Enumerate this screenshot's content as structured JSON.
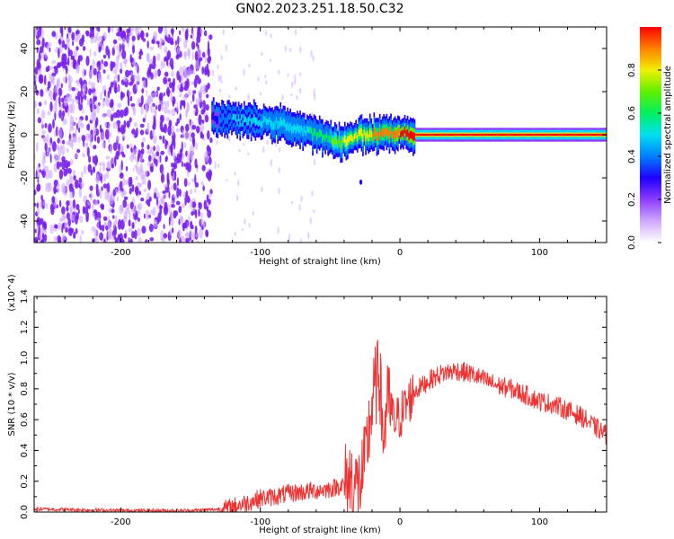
{
  "title": "GN02.2023.251.18.50.C32",
  "colors": {
    "snr_line": "#ee3333",
    "background_noise": "#7a20ee",
    "colormap": [
      "#ffffff",
      "#cfa8ff",
      "#8c3cff",
      "#1f00ff",
      "#0080ff",
      "#00e0f0",
      "#00f060",
      "#60f000",
      "#f0f000",
      "#ff8000",
      "#ff0000"
    ]
  },
  "chart_data": [
    {
      "type": "heatmap",
      "xlabel": "Height of straight line (km)",
      "ylabel": "Frequency (Hz)",
      "xlim": [
        -262,
        148
      ],
      "ylim": [
        -50,
        50
      ],
      "xticks": [
        -200,
        -100,
        0,
        100
      ],
      "yticks": [
        -40,
        -20,
        0,
        20,
        40
      ],
      "colorbar": {
        "label": "Normalized spectral amplitude",
        "range": [
          0,
          1
        ],
        "ticks": [
          "0.0",
          "0.2",
          "0.4",
          "0.6",
          "0.8"
        ]
      },
      "noise_region_x": [
        -262,
        -135
      ],
      "signal_ridge": {
        "x": [
          -135,
          -120,
          -100,
          -85,
          -75,
          -65,
          -55,
          -45,
          -38,
          -30,
          -20,
          -10,
          0,
          10,
          50,
          100,
          148
        ],
        "frequency": [
          8,
          7,
          6,
          5,
          3,
          1,
          -1,
          -3,
          -3,
          0,
          0,
          1,
          1,
          0,
          0,
          0,
          0
        ],
        "peak_amplitude": [
          0.3,
          0.45,
          0.5,
          0.5,
          0.5,
          0.55,
          0.6,
          0.7,
          0.8,
          0.8,
          0.85,
          0.9,
          0.95,
          1.0,
          1.0,
          1.0,
          1.0
        ]
      }
    },
    {
      "type": "line",
      "xlabel": "Height of straight line (km)",
      "ylabel": "SNR (10 * v/v)",
      "y_multiplier": "(x10^4)",
      "xlim": [
        -262,
        148
      ],
      "ylim": [
        0,
        1.4
      ],
      "xticks": [
        -200,
        -100,
        0,
        100
      ],
      "yticks": [
        "0.0",
        "0.2",
        "0.4",
        "0.6",
        "0.8",
        "1.0",
        "1.2",
        "1.4"
      ],
      "series": [
        {
          "x": [
            -262,
            -200,
            -150,
            -125,
            -110,
            -100,
            -90,
            -80,
            -70,
            -60,
            -50,
            -40,
            -35,
            -30,
            -25,
            -22,
            -20,
            -18,
            -16,
            -14,
            -12,
            -10,
            -8,
            -5,
            0,
            10,
            20,
            30,
            40,
            50,
            60,
            70,
            80,
            90,
            100,
            110,
            120,
            130,
            140,
            148
          ],
          "values": [
            0.02,
            0.01,
            0.01,
            0.02,
            0.06,
            0.09,
            0.1,
            0.12,
            0.13,
            0.14,
            0.15,
            0.18,
            0.22,
            0.15,
            0.3,
            0.55,
            0.7,
            0.8,
            0.85,
            0.78,
            0.45,
            0.65,
            0.72,
            0.58,
            0.62,
            0.78,
            0.85,
            0.9,
            0.92,
            0.9,
            0.86,
            0.82,
            0.8,
            0.76,
            0.72,
            0.7,
            0.66,
            0.62,
            0.55,
            0.5
          ]
        }
      ]
    }
  ]
}
